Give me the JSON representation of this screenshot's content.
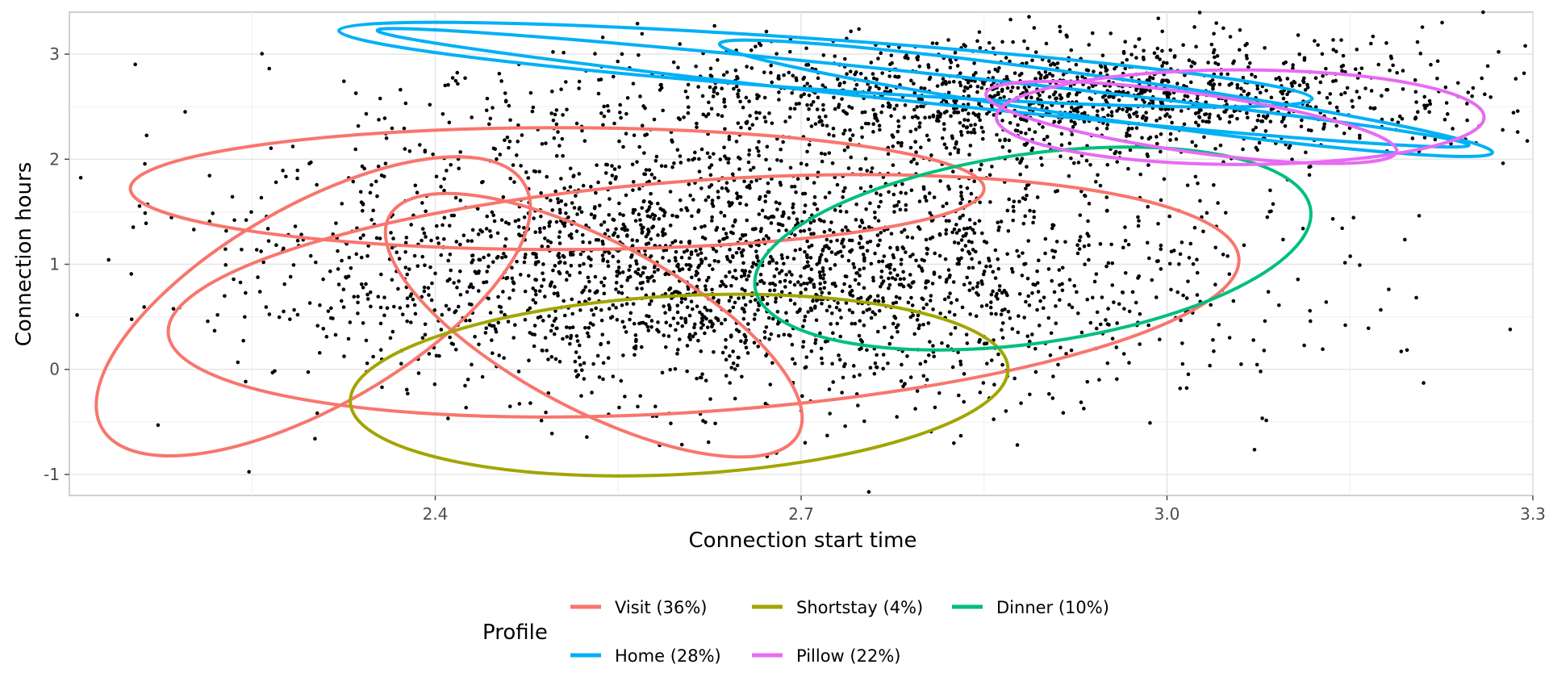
{
  "chart_data": {
    "type": "scatter",
    "xlabel": "Connection start time",
    "ylabel": "Connection hours",
    "xlim": [
      2.1,
      3.3
    ],
    "ylim": [
      -1.2,
      3.4
    ],
    "x_ticks": [
      2.4,
      2.7,
      3.0,
      3.3
    ],
    "x_tick_labels": [
      "2.4",
      "2.7",
      "3.0",
      "3.3"
    ],
    "y_ticks": [
      -1,
      0,
      1,
      2,
      3
    ],
    "y_tick_labels": [
      "-1",
      "0",
      "1",
      "2",
      "3"
    ],
    "grid": true,
    "legend": {
      "title": "Profile",
      "position": "bottom",
      "entries": [
        {
          "label": "Visit (36%)",
          "color": "#F8766D"
        },
        {
          "label": "Shortstay (4%)",
          "color": "#A3A500"
        },
        {
          "label": "Dinner (10%)",
          "color": "#00BF7D"
        },
        {
          "label": "Home (28%)",
          "color": "#00B0F6"
        },
        {
          "label": "Pillow (22%)",
          "color": "#E76BF3"
        }
      ]
    },
    "point_clouds": [
      {
        "description_id": "main",
        "center": [
          2.65,
          1.0
        ],
        "spread": [
          0.2,
          0.65
        ],
        "count": 2600
      },
      {
        "description_id": "top",
        "center": [
          2.9,
          2.6
        ],
        "spread": [
          0.18,
          0.28
        ],
        "count": 1400
      }
    ],
    "series": [
      {
        "name": "Visit (36%)",
        "color": "#F8766D",
        "ellipses": [
          {
            "center": [
              2.5,
              1.72
            ],
            "semi_axes": [
              0.35,
              0.58
            ],
            "angle_deg": 0
          },
          {
            "center": [
              2.62,
              0.7
            ],
            "semi_axes": [
              0.44,
              1.1
            ],
            "angle_deg": -4
          },
          {
            "center": [
              2.3,
              0.6
            ],
            "semi_axes": [
              0.2,
              0.95
            ],
            "angle_deg": -30
          },
          {
            "center": [
              2.53,
              0.42
            ],
            "semi_axes": [
              0.19,
              0.8
            ],
            "angle_deg": 28
          }
        ]
      },
      {
        "name": "Shortstay (4%)",
        "color": "#A3A500",
        "ellipses": [
          {
            "center": [
              2.6,
              -0.15
            ],
            "semi_axes": [
              0.27,
              0.85
            ],
            "angle_deg": -3
          }
        ]
      },
      {
        "name": "Dinner (10%)",
        "color": "#00BF7D",
        "ellipses": [
          {
            "center": [
              2.89,
              1.15
            ],
            "semi_axes": [
              0.23,
              0.9
            ],
            "angle_deg": -8
          }
        ]
      },
      {
        "name": "Home (28%)",
        "color": "#00B0F6",
        "ellipses": [
          {
            "center": [
              2.72,
              2.9
            ],
            "semi_axes": [
              0.4,
              0.24
            ],
            "angle_deg": 4
          },
          {
            "center": [
              2.8,
              2.68
            ],
            "semi_axes": [
              0.45,
              0.14
            ],
            "angle_deg": 6
          },
          {
            "center": [
              2.95,
              2.58
            ],
            "semi_axes": [
              0.32,
              0.2
            ],
            "angle_deg": 8
          }
        ]
      },
      {
        "name": "Pillow (22%)",
        "color": "#E76BF3",
        "ellipses": [
          {
            "center": [
              3.06,
              2.4
            ],
            "semi_axes": [
              0.2,
              0.45
            ],
            "angle_deg": 0
          },
          {
            "center": [
              3.02,
              2.35
            ],
            "semi_axes": [
              0.17,
              0.28
            ],
            "angle_deg": 8
          }
        ]
      }
    ]
  }
}
